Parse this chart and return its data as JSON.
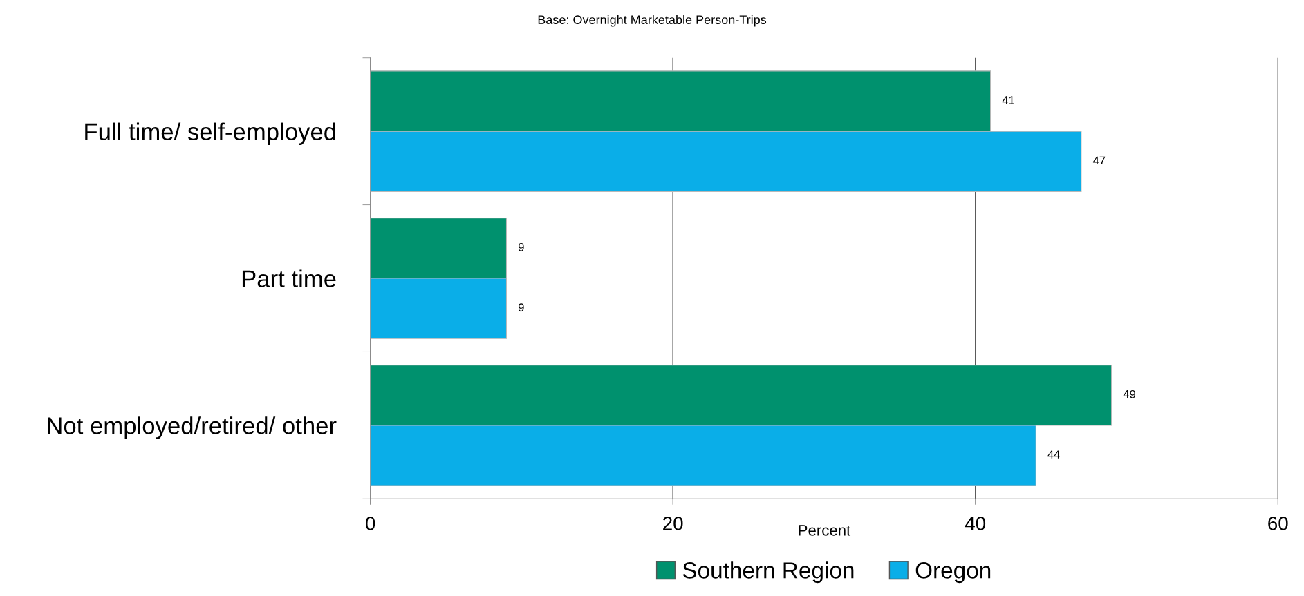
{
  "chart_data": {
    "type": "bar",
    "orientation": "horizontal",
    "title": "Base: Overnight Marketable Person-Trips",
    "xlabel": "Percent",
    "categories": [
      "Full time/ self-employed",
      "Part time",
      "Not employed/retired/ other"
    ],
    "series": [
      {
        "name": "Southern Region",
        "color": "#00916e",
        "values": [
          41,
          9,
          49
        ]
      },
      {
        "name": "Oregon",
        "color": "#0aaee8",
        "values": [
          47,
          9,
          44
        ]
      }
    ],
    "xlim": [
      0,
      60
    ],
    "xticks": [
      0,
      20,
      40,
      60
    ],
    "grid": "x",
    "legend": "bottom",
    "data_labels": true
  }
}
